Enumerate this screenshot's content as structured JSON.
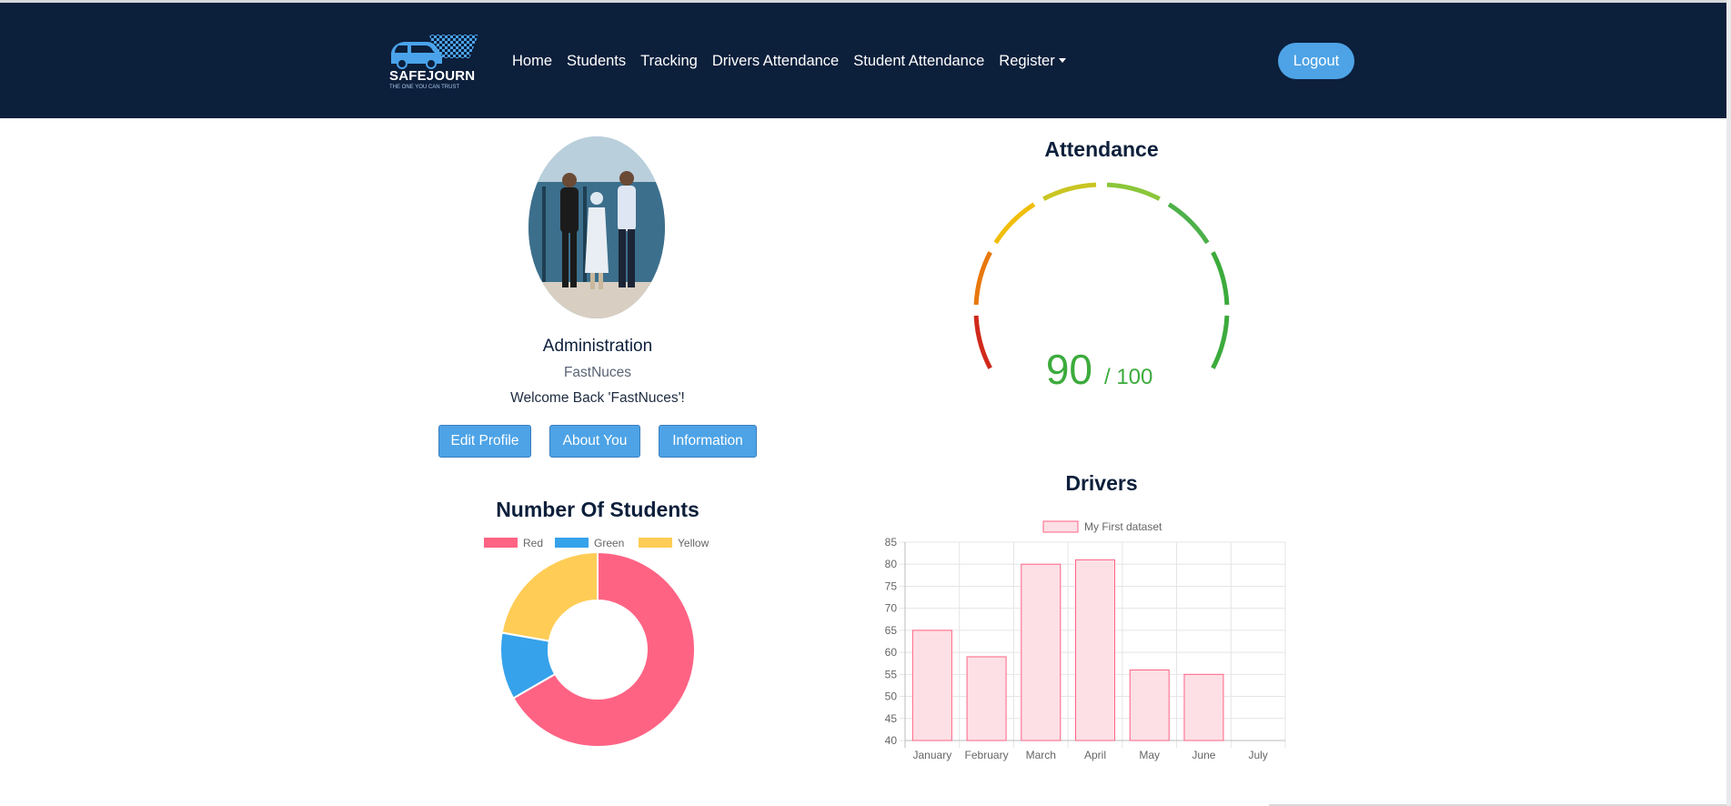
{
  "nav": {
    "logo_text": "SAFEJOURN",
    "logo_tagline": "THE ONE YOU CAN TRUST",
    "links": [
      "Home",
      "Students",
      "Tracking",
      "Drivers Attendance",
      "Student Attendance"
    ],
    "register_label": "Register",
    "logout_label": "Logout"
  },
  "profile": {
    "title": "Administration",
    "org": "FastNuces",
    "welcome": "Welcome Back 'FastNuces'!",
    "buttons": [
      "Edit Profile",
      "About You",
      "Information"
    ]
  },
  "attendance": {
    "title": "Attendance",
    "value": 90,
    "max": 100,
    "value_text": "90",
    "max_text": "/ 100",
    "color": "#3cab3c"
  },
  "students_chart": {
    "title": "Number Of Students"
  },
  "drivers_chart": {
    "title": "Drivers"
  },
  "chart_data": [
    {
      "type": "pie",
      "title": "Number Of Students",
      "categories": [
        "Red",
        "Green",
        "Yellow"
      ],
      "values": [
        300,
        50,
        100
      ],
      "colors": [
        "#ff6384",
        "#36a2eb",
        "#ffcd56"
      ],
      "legend": "top"
    },
    {
      "type": "bar",
      "title": "Drivers",
      "categories": [
        "January",
        "February",
        "March",
        "April",
        "May",
        "June",
        "July"
      ],
      "series": [
        {
          "name": "My First dataset",
          "values": [
            65,
            59,
            80,
            81,
            56,
            55,
            40
          ]
        }
      ],
      "ylim": [
        40,
        85
      ],
      "yticks": [
        40,
        45,
        50,
        55,
        60,
        65,
        70,
        75,
        80,
        85
      ],
      "fill": "#fde0e6",
      "stroke": "#ff6384",
      "grid": true,
      "legend": "top"
    }
  ]
}
